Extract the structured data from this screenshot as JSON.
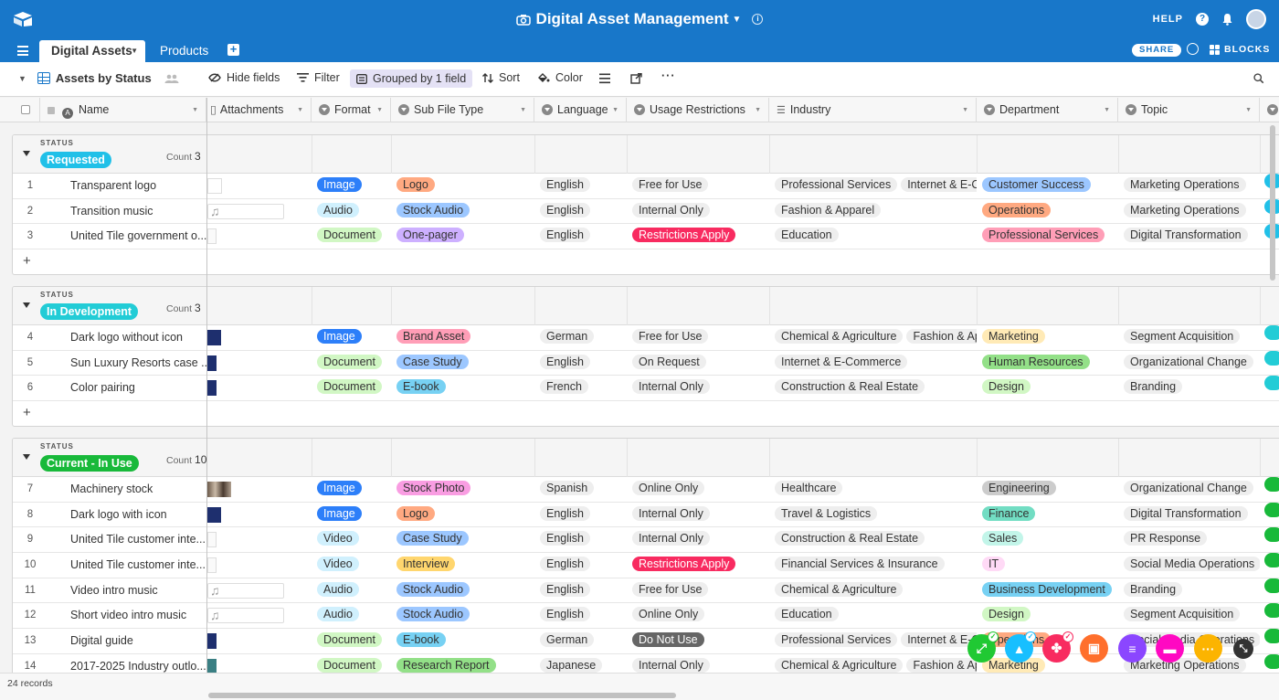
{
  "app": {
    "title": "Digital Asset Management",
    "help": "HELP",
    "tabs": [
      {
        "label": "Digital Assets"
      },
      {
        "label": "Products"
      }
    ],
    "share": "SHARE",
    "blocks": "BLOCKS"
  },
  "toolbar": {
    "view_name": "Assets by Status",
    "hide_fields": "Hide fields",
    "filter": "Filter",
    "grouped": "Grouped by 1 field",
    "sort": "Sort",
    "color": "Color"
  },
  "columns": [
    "Name",
    "Attachments",
    "Format",
    "Sub File Type",
    "Language",
    "Usage Restrictions",
    "Industry",
    "Department",
    "Topic"
  ],
  "group_label": "STATUS",
  "count_label": "Count",
  "groups": [
    {
      "status": "Requested",
      "color": "#20c0e8",
      "count": "3",
      "rows": [
        {
          "n": "1",
          "name": "Transparent logo",
          "att": "logo-white",
          "format": "Image",
          "sub": "Logo",
          "lang": "English",
          "usage": "Free for Use",
          "industry": [
            "Professional Services",
            "Internet & E-Com"
          ],
          "dept": "Customer Success",
          "topic": "Marketing Operations"
        },
        {
          "n": "2",
          "name": "Transition music",
          "att": "audio",
          "format": "Audio",
          "sub": "Stock Audio",
          "lang": "English",
          "usage": "Internal Only",
          "industry": [
            "Fashion & Apparel"
          ],
          "dept": "Operations",
          "topic": "Marketing Operations"
        },
        {
          "n": "3",
          "name": "United Tile government o...",
          "att": "doc",
          "format": "Document",
          "sub": "One-pager",
          "lang": "English",
          "usage": "Restrictions Apply",
          "industry": [
            "Education"
          ],
          "dept": "Professional Services",
          "topic": "Digital Transformation"
        }
      ]
    },
    {
      "status": "In Development",
      "color": "#22ccd6",
      "count": "3",
      "rows": [
        {
          "n": "4",
          "name": "Dark logo without icon",
          "att": "navy",
          "format": "Image",
          "sub": "Brand Asset",
          "lang": "German",
          "usage": "Free for Use",
          "industry": [
            "Chemical & Agriculture",
            "Fashion & Appa"
          ],
          "dept": "Marketing",
          "topic": "Segment Acquisition"
        },
        {
          "n": "5",
          "name": "Sun Luxury Resorts case ...",
          "att": "navy-small",
          "format": "Document",
          "sub": "Case Study",
          "lang": "English",
          "usage": "On Request",
          "industry": [
            "Internet & E-Commerce"
          ],
          "dept": "Human Resources",
          "topic": "Organizational Change"
        },
        {
          "n": "6",
          "name": "Color pairing",
          "att": "navy-small",
          "format": "Document",
          "sub": "E-book",
          "lang": "French",
          "usage": "Internal Only",
          "industry": [
            "Construction & Real Estate"
          ],
          "dept": "Design",
          "topic": "Branding"
        }
      ]
    },
    {
      "status": "Current - In Use",
      "color": "#18b93a",
      "count": "10",
      "rows": [
        {
          "n": "7",
          "name": "Machinery stock",
          "att": "photo",
          "format": "Image",
          "sub": "Stock Photo",
          "lang": "Spanish",
          "usage": "Online Only",
          "industry": [
            "Healthcare"
          ],
          "dept": "Engineering",
          "topic": "Organizational Change"
        },
        {
          "n": "8",
          "name": "Dark logo with icon",
          "att": "navy",
          "format": "Image",
          "sub": "Logo",
          "lang": "English",
          "usage": "Internal Only",
          "industry": [
            "Travel & Logistics"
          ],
          "dept": "Finance",
          "topic": "Digital Transformation"
        },
        {
          "n": "9",
          "name": "United Tile customer inte...",
          "att": "doc",
          "format": "Video",
          "sub": "Case Study",
          "lang": "English",
          "usage": "Internal Only",
          "industry": [
            "Construction & Real Estate"
          ],
          "dept": "Sales",
          "topic": "PR Response"
        },
        {
          "n": "10",
          "name": "United Tile customer inte...",
          "att": "doc",
          "format": "Video",
          "sub": "Interview",
          "lang": "English",
          "usage": "Restrictions Apply",
          "industry": [
            "Financial Services & Insurance"
          ],
          "dept": "IT",
          "topic": "Social Media Operations"
        },
        {
          "n": "11",
          "name": "Video intro music",
          "att": "audio",
          "format": "Audio",
          "sub": "Stock Audio",
          "lang": "English",
          "usage": "Free for Use",
          "industry": [
            "Chemical & Agriculture"
          ],
          "dept": "Business Development",
          "topic": "Branding"
        },
        {
          "n": "12",
          "name": "Short video intro music",
          "att": "audio",
          "format": "Audio",
          "sub": "Stock Audio",
          "lang": "English",
          "usage": "Online Only",
          "industry": [
            "Education"
          ],
          "dept": "Design",
          "topic": "Segment Acquisition"
        },
        {
          "n": "13",
          "name": "Digital guide",
          "att": "navy-small",
          "format": "Document",
          "sub": "E-book",
          "lang": "German",
          "usage": "Do Not Use",
          "industry": [
            "Professional Services",
            "Internet & E-Co"
          ],
          "dept": "Operations",
          "topic": "Social Media Operations"
        },
        {
          "n": "14",
          "name": "2017-2025 Industry outlo...",
          "att": "teal",
          "format": "Document",
          "sub": "Research Report",
          "lang": "Japanese",
          "usage": "Internal Only",
          "industry": [
            "Chemical & Agriculture",
            "Fashion & Appa"
          ],
          "dept": "Marketing",
          "topic": "Marketing Operations"
        }
      ]
    }
  ],
  "footer": {
    "records": "24 records"
  },
  "colors": {
    "format": {
      "Image": "#2d7ff9",
      "Audio": "#d0f0fd",
      "Document": "#d1f7c4",
      "Video": "#d0f0fd"
    },
    "sub": {
      "Logo": "#ffa981",
      "Stock Audio": "#9cc7ff",
      "One-pager": "#cdb0ff",
      "Brand Asset": "#ff9eb7",
      "Case Study": "#9cc7ff",
      "E-book": "#77d1f3",
      "Stock Photo": "#f99de2",
      "Interview": "#ffd66e",
      "Research Report": "#93e088"
    },
    "usage": {
      "Free for Use": "#eeeeee",
      "Internal Only": "#eeeeee",
      "Restrictions Apply": "#f82b60",
      "On Request": "#eeeeee",
      "Online Only": "#eeeeee",
      "Do Not Use": "#666666"
    },
    "dept": {
      "Customer Success": "#9cc7ff",
      "Operations": "#ffa981",
      "Professional Services": "#ff9eb7",
      "Marketing": "#ffeab6",
      "Human Resources": "#93e088",
      "Design": "#d1f7c4",
      "Engineering": "#cccccc",
      "Finance": "#72ddc3",
      "Sales": "#c2f5e9",
      "IT": "#ffdaf6",
      "Business Development": "#77d1f3"
    }
  },
  "icons": [
    "base-logo-icon",
    "camera-icon",
    "bell-icon",
    "history-icon",
    "blocks-icon",
    "search-icon",
    "grid-view-icon",
    "people-icon"
  ]
}
